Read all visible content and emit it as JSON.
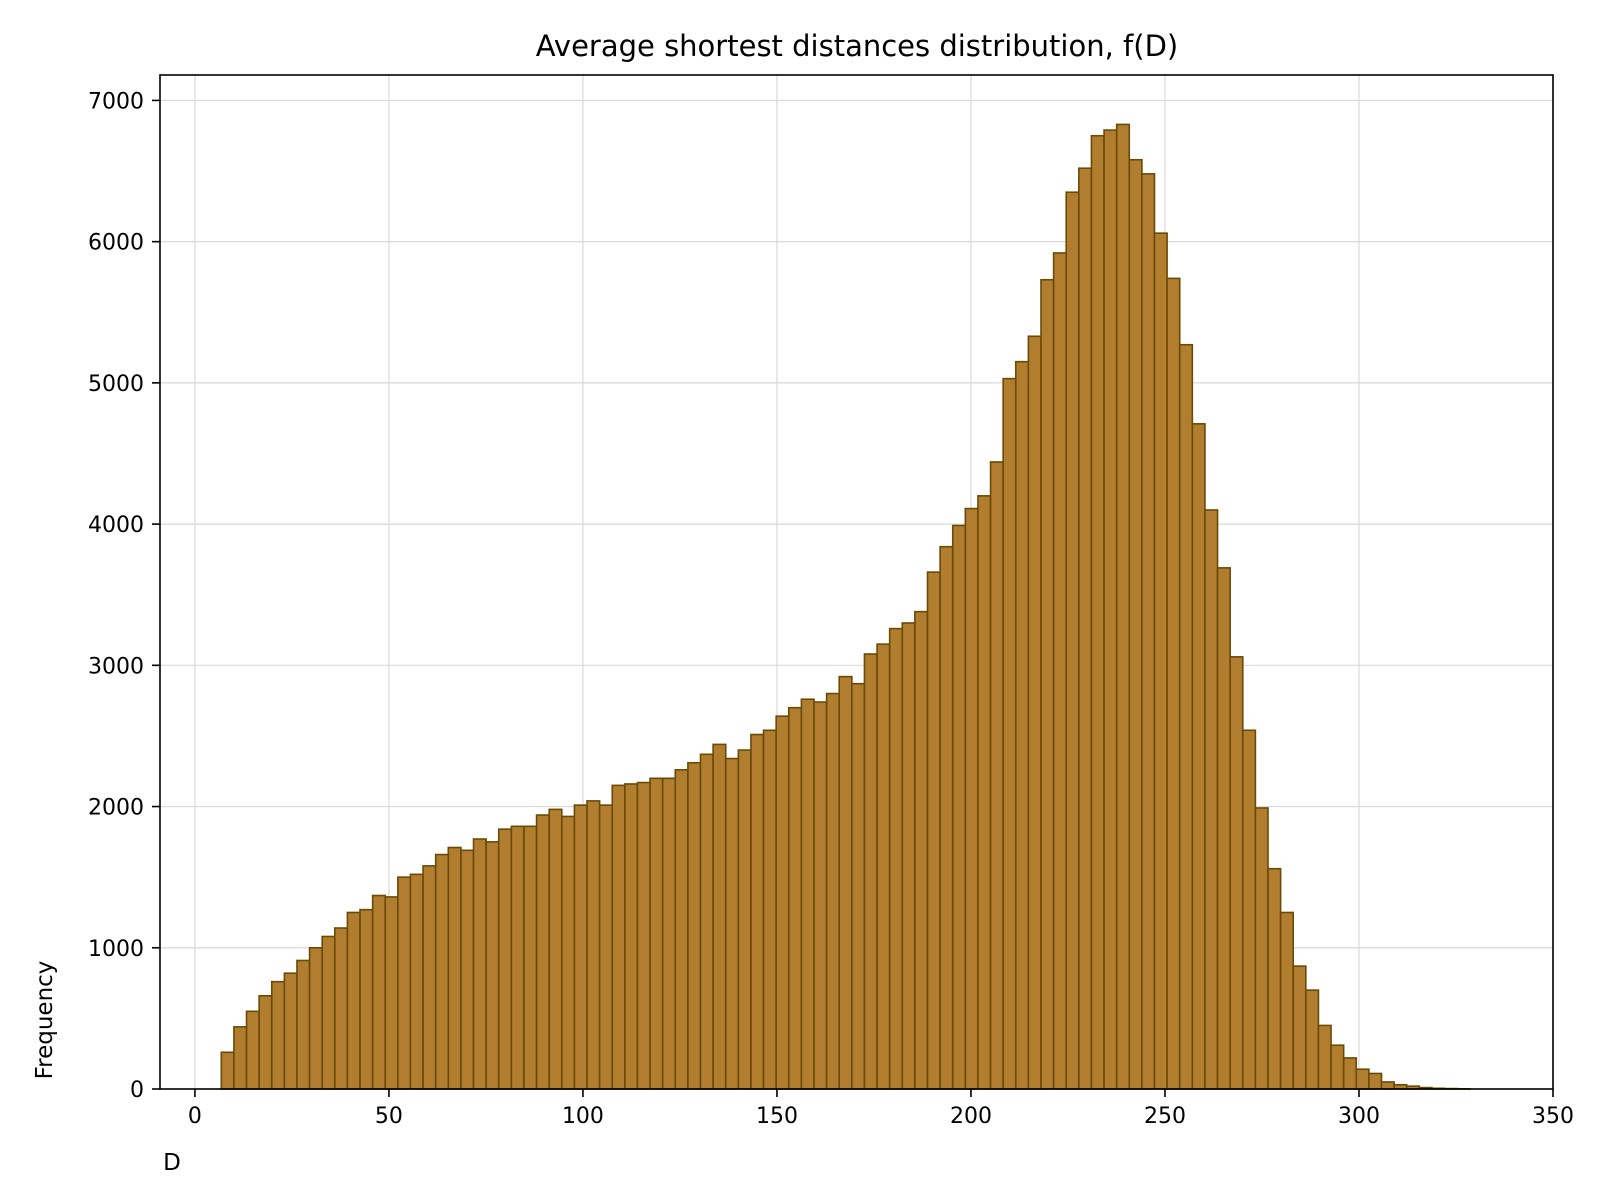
{
  "chart_data": {
    "type": "bar",
    "title": "Average shortest distances distribution, f(D)",
    "xlabel": "D",
    "ylabel": "Frequency",
    "xlim": [
      -9,
      350
    ],
    "ylim": [
      0,
      7180
    ],
    "x_ticks": [
      0,
      50,
      100,
      150,
      200,
      250,
      300,
      350
    ],
    "y_ticks": [
      0,
      1000,
      2000,
      3000,
      4000,
      5000,
      6000,
      7000
    ],
    "grid": true,
    "bin_start": 6.8,
    "bin_width": 3.25,
    "values": [
      260,
      440,
      550,
      660,
      760,
      820,
      910,
      1000,
      1080,
      1140,
      1250,
      1270,
      1370,
      1360,
      1500,
      1520,
      1580,
      1660,
      1710,
      1690,
      1770,
      1750,
      1840,
      1860,
      1860,
      1940,
      1980,
      1930,
      2010,
      2040,
      2010,
      2150,
      2160,
      2170,
      2200,
      2200,
      2260,
      2310,
      2370,
      2440,
      2340,
      2400,
      2510,
      2540,
      2640,
      2700,
      2760,
      2740,
      2800,
      2920,
      2870,
      3080,
      3150,
      3260,
      3300,
      3380,
      3660,
      3840,
      3990,
      4110,
      4200,
      4440,
      5030,
      5150,
      5330,
      5730,
      5920,
      6350,
      6520,
      6750,
      6790,
      6830,
      6580,
      6480,
      6060,
      5740,
      5270,
      4710,
      4100,
      3690,
      3060,
      2540,
      1990,
      1560,
      1250,
      870,
      700,
      450,
      310,
      220,
      140,
      110,
      50,
      30,
      20,
      10,
      5,
      3,
      1
    ],
    "colors": {
      "bar_fill": "#b07e2e",
      "bar_edge": "#6b4a06",
      "grid": "#d9d9d9",
      "axis": "#000000"
    }
  }
}
